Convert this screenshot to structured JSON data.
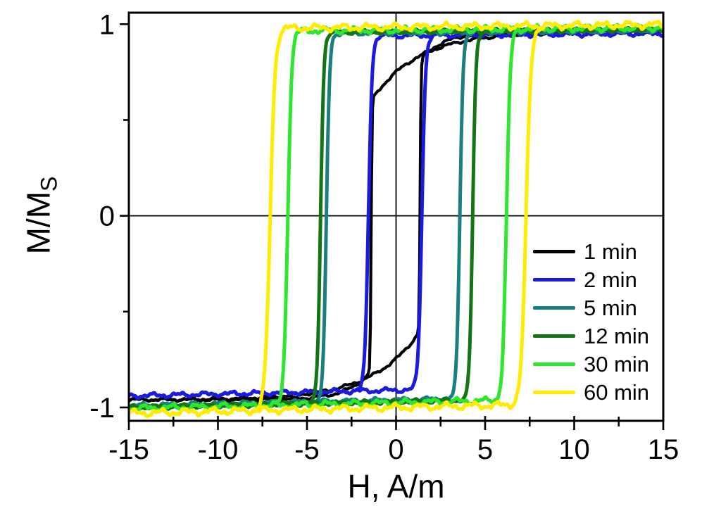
{
  "chart_data": {
    "type": "line",
    "title": "",
    "xlabel": "H, A/m",
    "ylabel": "M/M",
    "ylabel_sub": "S",
    "xlim": [
      -15,
      15
    ],
    "ylim": [
      -1.07,
      1.06
    ],
    "x_major_ticks": [
      -15,
      -10,
      -5,
      0,
      5,
      10,
      15
    ],
    "x_minor_ticks": [
      -12.5,
      -7.5,
      -2.5,
      2.5,
      7.5,
      12.5
    ],
    "y_major_ticks": [
      1,
      0,
      -1
    ],
    "y_minor_ticks": [
      0.5,
      -0.5
    ],
    "zero_axis_lines": true,
    "grid": false,
    "legend_position": "lower-right",
    "series": [
      {
        "name": "1 min",
        "color": "#000000",
        "loop": "creep",
        "H_switch_down": -1.4,
        "H_switch_up": 1.35,
        "M_sat": 0.96,
        "sag_amount": 0.36,
        "sag_range": 2.6,
        "landing_offset": 0.15,
        "landing_range": 1.3,
        "edge_width": 0.05,
        "noise": 0.005
      },
      {
        "name": "2 min",
        "color": "#1a1ae0",
        "loop": "square",
        "H_switch_down": -1.55,
        "H_switch_up": 1.45,
        "M_sat_top": 0.94,
        "M_sat_bottom": -0.91,
        "edge_width": 0.2,
        "noise": 0.008
      },
      {
        "name": "5 min",
        "color": "#1a7f7e",
        "loop": "square",
        "H_switch_down": -3.91,
        "H_switch_up": 3.58,
        "M_sat_top": 0.955,
        "M_sat_bottom": -0.96,
        "edge_width": 0.18,
        "noise": 0.007
      },
      {
        "name": "12 min",
        "color": "#157515",
        "loop": "square",
        "H_switch_down": -4.24,
        "H_switch_up": 4.3,
        "M_sat_top": 0.96,
        "M_sat_bottom": -0.97,
        "edge_width": 0.18,
        "noise": 0.007
      },
      {
        "name": "30 min",
        "color": "#2de62d",
        "loop": "square",
        "H_switch_down": -6.08,
        "H_switch_up": 6.2,
        "M_sat_top": 0.97,
        "M_sat_bottom": -0.975,
        "edge_width": 0.22,
        "noise": 0.011
      },
      {
        "name": "60 min",
        "color": "#ffec00",
        "loop": "square",
        "H_switch_down": -7.07,
        "H_switch_up": 7.3,
        "M_sat_top": 0.985,
        "M_sat_bottom": -1.0,
        "edge_width": 0.28,
        "noise": 0.012
      }
    ]
  }
}
